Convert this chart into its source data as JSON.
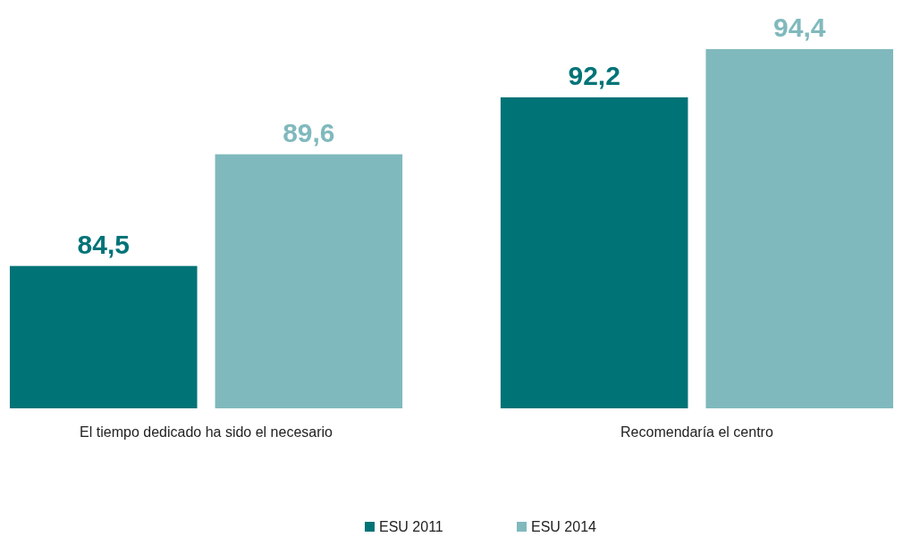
{
  "chart_data": {
    "type": "bar",
    "categories": [
      "El tiempo dedicado ha sido el necesario",
      "Recomendaría el centro"
    ],
    "series": [
      {
        "name": "ESU 2011",
        "color": "#007377",
        "values": [
          84.5,
          92.2
        ],
        "value_labels": [
          "84,5",
          "92,2"
        ]
      },
      {
        "name": "ESU 2014",
        "color": "#80b9bd",
        "values": [
          89.6,
          94.4
        ],
        "value_labels": [
          "89,6",
          "94,4"
        ]
      }
    ],
    "ylim": [
      78,
      94.4
    ],
    "legend": "bottom"
  }
}
